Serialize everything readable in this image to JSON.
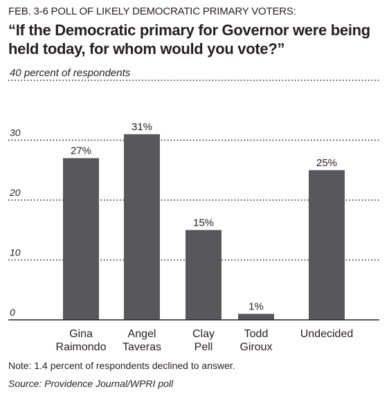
{
  "header": {
    "kicker": "FEB. 3-6 POLL OF LIKELY DEMOCRATIC PRIMARY VOTERS:",
    "question": "“If the Democratic primary for Governor were being held today, for whom would you vote?”"
  },
  "chart_data": {
    "type": "bar",
    "ylabel": "40 percent of respondents",
    "ylim": [
      0,
      40
    ],
    "yticks": [
      "0",
      "10",
      "20",
      "30"
    ],
    "grid": true,
    "categories": [
      [
        "Gina",
        "Raimondo"
      ],
      [
        "Angel",
        "Taveras"
      ],
      [
        "Clay",
        "Pell"
      ],
      [
        "Todd",
        "Giroux"
      ],
      [
        "Undecided"
      ]
    ],
    "values": [
      27,
      31,
      15,
      1,
      25
    ],
    "value_labels": [
      "27%",
      "31%",
      "15%",
      "1%",
      "25%"
    ],
    "bar_color": "#58585a"
  },
  "footer": {
    "note": "Note: 1.4 percent of respondents declined to answer.",
    "source": "Source: Providence Journal/WPRI poll"
  }
}
